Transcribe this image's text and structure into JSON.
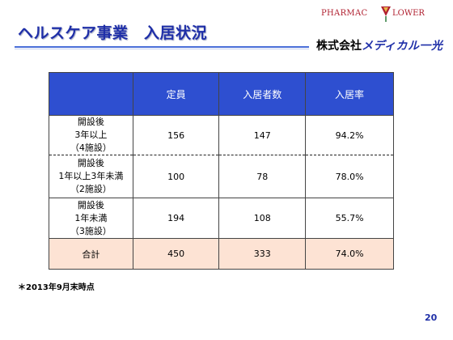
{
  "header": {
    "title": "ヘルスケア事業　入居状況"
  },
  "logo": {
    "pharmac": "PHARMAC",
    "lower": "LOWER",
    "company_prefix": "株式会社",
    "company_brand": "メディカル一光"
  },
  "table": {
    "columns": [
      "定員",
      "入居者数",
      "入居率"
    ],
    "rows": [
      {
        "label": [
          "開設後",
          "3年以上",
          "（4施設）"
        ],
        "capacity": "156",
        "residents": "147",
        "rate": "94.2%"
      },
      {
        "label": [
          "開設後",
          "1年以上3年未満",
          "（2施設）"
        ],
        "capacity": "100",
        "residents": "78",
        "rate": "78.0%"
      },
      {
        "label": [
          "開設後",
          "1年未満",
          "（3施設）"
        ],
        "capacity": "194",
        "residents": "108",
        "rate": "55.7%"
      }
    ],
    "total": {
      "label": "合計",
      "capacity": "450",
      "residents": "333",
      "rate": "74.0%"
    }
  },
  "footnote": "＊2013年9月末時点",
  "page_number": "20",
  "colors": {
    "title": "#1f2fa8",
    "header_bg": "#2e4fd0",
    "total_bg": "#fde3d4",
    "logo_red": "#b02030"
  }
}
